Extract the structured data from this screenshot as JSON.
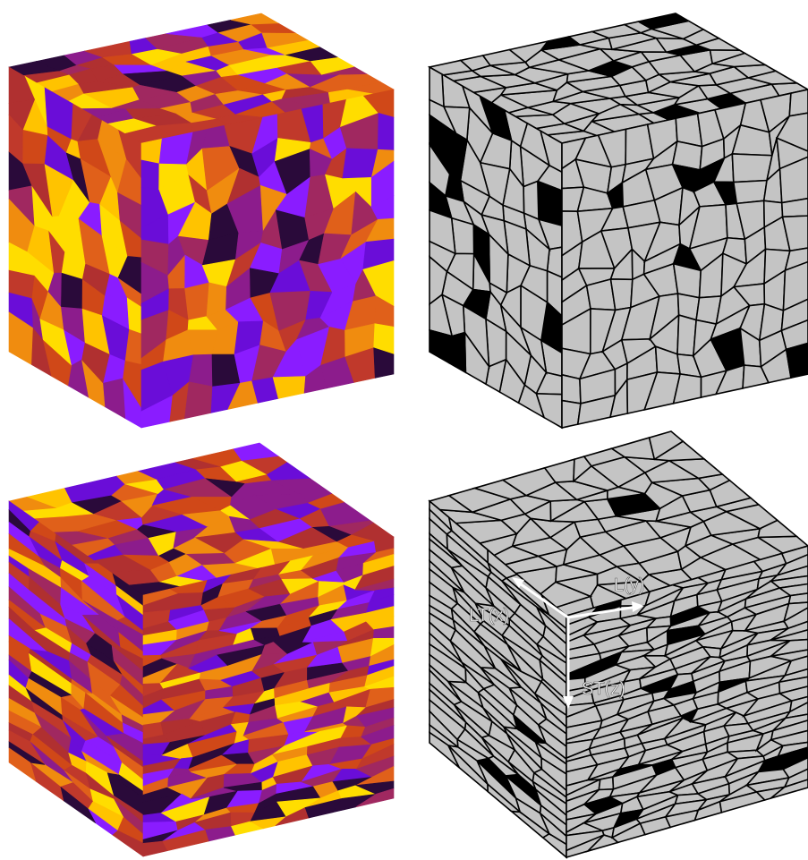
{
  "axis_labels": {
    "lt": "LT(x)",
    "l": "L(y)",
    "st": "ST(z)"
  }
}
